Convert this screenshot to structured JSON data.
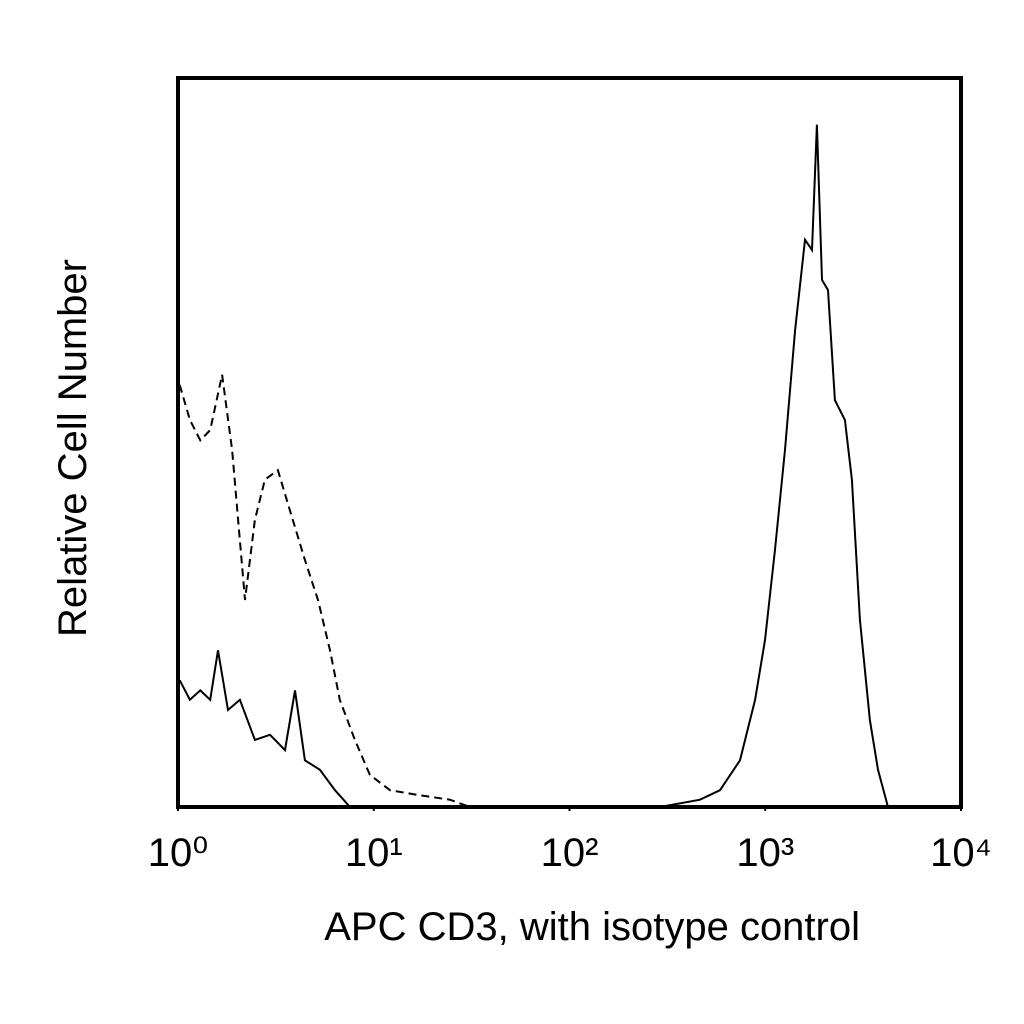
{
  "chart_data": {
    "type": "line",
    "xlabel": "APC CD3, with isotype control",
    "ylabel": "Relative Cell Number",
    "xscale": "log",
    "xlim": [
      1,
      10000
    ],
    "ylim": [
      0,
      100
    ],
    "xticks": [
      {
        "value": 1,
        "label": "10⁰"
      },
      {
        "value": 10,
        "label": "10¹"
      },
      {
        "value": 100,
        "label": "10²"
      },
      {
        "value": 1000,
        "label": "10³"
      },
      {
        "value": 10000,
        "label": "10⁴"
      }
    ],
    "series": [
      {
        "color": "#000000",
        "style": "solid",
        "x": [
          1.02,
          1.15,
          1.3,
          1.46,
          1.6,
          1.8,
          2.07,
          2.47,
          2.95,
          3.52,
          3.96,
          4.45,
          5.31,
          6.34,
          7.56,
          290,
          464,
          587,
          743,
          887,
          997,
          1122,
          1262,
          1420,
          1597,
          1733,
          1837,
          1949,
          2091,
          2269,
          2553,
          2772,
          3045,
          3426,
          3766,
          4237
        ],
        "values": [
          17.4,
          14.7,
          16.0,
          14.7,
          21.5,
          13.3,
          14.7,
          9.2,
          9.9,
          7.8,
          16.0,
          6.4,
          5.1,
          2.3,
          0,
          0,
          1.0,
          2.3,
          6.4,
          14.7,
          22.9,
          35.3,
          49.0,
          65.4,
          77.8,
          76.4,
          93.6,
          72.3,
          70.9,
          55.8,
          53.1,
          44.9,
          25.7,
          11.9,
          5.1,
          0
        ]
      },
      {
        "color": "#000000",
        "style": "dashed",
        "x": [
          1.02,
          1.15,
          1.3,
          1.46,
          1.68,
          1.89,
          2.2,
          2.47,
          2.78,
          3.24,
          3.73,
          4.45,
          5.19,
          5.98,
          6.71,
          8.01,
          9.56,
          12.1,
          17.2,
          24.5,
          31.0
        ],
        "values": [
          57.9,
          53.1,
          50.3,
          51.7,
          59.3,
          49.0,
          28.4,
          39.4,
          44.9,
          46.2,
          40.7,
          33.9,
          28.4,
          21.5,
          14.7,
          9.2,
          4.4,
          2.3,
          1.6,
          1.0,
          0
        ]
      }
    ]
  }
}
